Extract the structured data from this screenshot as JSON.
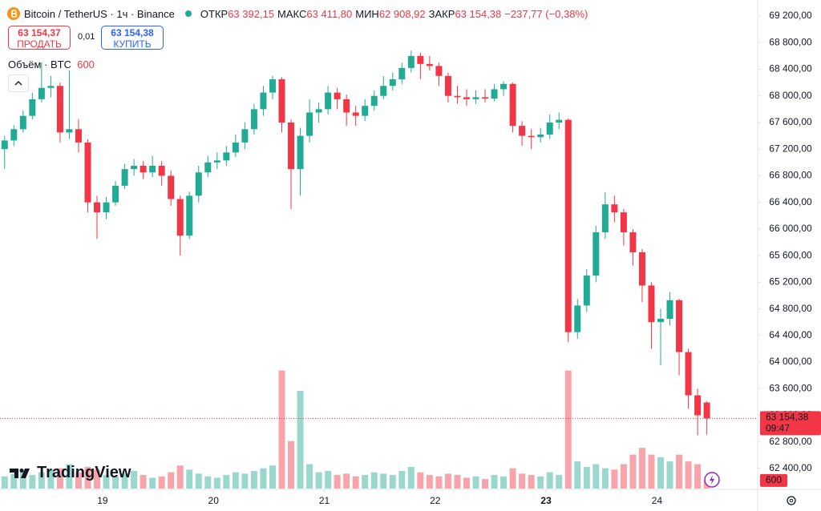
{
  "header": {
    "symbol": "Bitcoin / TetherUS · 1ч · Binance",
    "open_label": "ОТКР",
    "open": "63 392,15",
    "high_label": "МАКС",
    "high": "63 411,80",
    "low_label": "МИН",
    "low": "62 908,92",
    "close_label": "ЗАКР",
    "close": "63 154,38",
    "change": "−237,77 (−0,38%)"
  },
  "trade": {
    "sell_price": "63 154,37",
    "sell_label": "ПРОДАТЬ",
    "spread": "0,01",
    "buy_price": "63 154,38",
    "buy_label": "КУПИТЬ"
  },
  "volume_legend": {
    "label": "Объём · BTC",
    "value": "600"
  },
  "logo": "TradingView",
  "chart_data": {
    "type": "candlestick",
    "up_color": "#22ab94",
    "down_color": "#f23645",
    "volume_opacity": 0.45,
    "grid": false,
    "xlim": [
      -0.5,
      81.5
    ],
    "xticks": [
      {
        "value": 10.6,
        "label": "19"
      },
      {
        "value": 22.6,
        "label": "20"
      },
      {
        "value": 34.6,
        "label": "21"
      },
      {
        "value": 46.6,
        "label": "22"
      },
      {
        "value": 58.6,
        "label": "23"
      },
      {
        "value": 70.6,
        "label": "24"
      }
    ],
    "ylim": [
      62099,
      69441
    ],
    "yticks": [
      {
        "value": 69200,
        "label": "69 200,00"
      },
      {
        "value": 68800,
        "label": "68 800,00"
      },
      {
        "value": 68400,
        "label": "68 400,00"
      },
      {
        "value": 68000,
        "label": "68 000,00"
      },
      {
        "value": 67600,
        "label": "67 600,00"
      },
      {
        "value": 67200,
        "label": "67 200,00"
      },
      {
        "value": 66800,
        "label": "66 800,00"
      },
      {
        "value": 66400,
        "label": "66 400,00"
      },
      {
        "value": 66000,
        "label": "66 000,00"
      },
      {
        "value": 65600,
        "label": "65 600,00"
      },
      {
        "value": 65200,
        "label": "65 200,00"
      },
      {
        "value": 64800,
        "label": "64 800,00"
      },
      {
        "value": 64400,
        "label": "64 400,00"
      },
      {
        "value": 64000,
        "label": "64 000,00"
      },
      {
        "value": 63600,
        "label": "63 600,00"
      },
      {
        "value": 63200,
        "label": "63 200,00"
      },
      {
        "value": 62800,
        "label": "62 800,00"
      },
      {
        "value": 62400,
        "label": "62 400,00"
      }
    ],
    "volume_ylim": [
      0,
      36000
    ],
    "open": [
      67200,
      67330,
      67500,
      67700,
      67950,
      68120,
      68150,
      67450,
      67500,
      67300,
      66400,
      66250,
      66400,
      66650,
      66900,
      66950,
      66850,
      66950,
      66800,
      66450,
      65900,
      66500,
      66850,
      67000,
      67030,
      67150,
      67300,
      67500,
      67800,
      68050,
      68250,
      67600,
      66900,
      67400,
      67750,
      67800,
      68050,
      67950,
      67750,
      67700,
      67850,
      68000,
      68150,
      68250,
      68420,
      68600,
      68480,
      68450,
      68300,
      68000,
      67980,
      67950,
      67980,
      67960,
      68100,
      68180,
      67550,
      67400,
      67380,
      67420,
      67600,
      67640,
      64450,
      64850,
      65300,
      65950,
      66370,
      66250,
      65950,
      65650,
      65150,
      64600,
      64650,
      64930,
      64150,
      63500,
      63392.15
    ],
    "high": [
      67400,
      67560,
      67780,
      68050,
      68500,
      68300,
      68200,
      68380,
      67650,
      67350,
      66500,
      66480,
      66720,
      66980,
      67050,
      67020,
      67100,
      67020,
      66880,
      66500,
      66560,
      66950,
      67100,
      67150,
      67250,
      67420,
      67600,
      67880,
      68150,
      68300,
      68280,
      67650,
      67520,
      67950,
      67900,
      68150,
      68120,
      68020,
      67850,
      67950,
      68080,
      68300,
      68350,
      68500,
      68680,
      68650,
      68600,
      68500,
      68350,
      68150,
      68100,
      68080,
      68100,
      68180,
      68220,
      68200,
      67620,
      67500,
      67520,
      67720,
      67750,
      67660,
      64950,
      65400,
      66050,
      66550,
      66500,
      66300,
      66000,
      65700,
      65200,
      64800,
      65050,
      64950,
      64200,
      63600,
      63411.8
    ],
    "low": [
      66900,
      67250,
      67450,
      67650,
      67900,
      67980,
      67300,
      67350,
      67150,
      66250,
      65850,
      66150,
      66350,
      66600,
      66800,
      66750,
      66780,
      66650,
      66350,
      65600,
      65850,
      66400,
      66780,
      66900,
      66950,
      67080,
      67200,
      67420,
      67700,
      67950,
      67450,
      66300,
      66500,
      67300,
      67600,
      67720,
      67800,
      67550,
      67550,
      67620,
      67780,
      67950,
      68080,
      68180,
      68350,
      68250,
      68380,
      68150,
      67900,
      67880,
      67850,
      67880,
      67900,
      67920,
      68000,
      67450,
      67250,
      67200,
      67300,
      67350,
      67500,
      64300,
      64350,
      64750,
      65200,
      65850,
      66100,
      65750,
      65450,
      64900,
      64200,
      63950,
      64550,
      63800,
      63300,
      62900,
      62908.92
    ],
    "close": [
      67330,
      67500,
      67700,
      67950,
      68120,
      68150,
      67450,
      67500,
      67300,
      66400,
      66250,
      66400,
      66650,
      66900,
      66950,
      66850,
      66950,
      66800,
      66450,
      65900,
      66500,
      66850,
      67000,
      67030,
      67150,
      67300,
      67500,
      67800,
      68050,
      68250,
      67600,
      66900,
      67400,
      67750,
      67800,
      68050,
      67950,
      67750,
      67700,
      67850,
      68000,
      68150,
      68250,
      68420,
      68600,
      68480,
      68450,
      68300,
      68000,
      67980,
      67950,
      67980,
      67960,
      68100,
      68180,
      67550,
      67400,
      67380,
      67420,
      67600,
      67640,
      64450,
      64850,
      65300,
      65950,
      66370,
      66250,
      65950,
      65650,
      65150,
      64600,
      64650,
      64930,
      64150,
      63500,
      63200,
      63154.38
    ],
    "volume": [
      900,
      1100,
      1300,
      1000,
      1200,
      1400,
      1500,
      1800,
      1200,
      1600,
      1400,
      1000,
      900,
      1100,
      1300,
      1000,
      800,
      900,
      1200,
      1700,
      1400,
      1100,
      900,
      800,
      1000,
      1200,
      1100,
      1300,
      1500,
      1700,
      8700,
      3500,
      7200,
      1800,
      1200,
      1300,
      1000,
      1100,
      900,
      1000,
      1200,
      1100,
      1000,
      1300,
      1600,
      1200,
      1000,
      900,
      1100,
      1000,
      800,
      900,
      700,
      1000,
      900,
      1500,
      1100,
      1000,
      900,
      1200,
      1000,
      8700,
      2000,
      1600,
      1800,
      1500,
      1400,
      1800,
      2500,
      3000,
      2500,
      2300,
      2000,
      2500,
      2000,
      1800,
      600
    ],
    "last_price_label": "63 154,38",
    "countdown": "09:47",
    "last_volume_label": "600"
  }
}
